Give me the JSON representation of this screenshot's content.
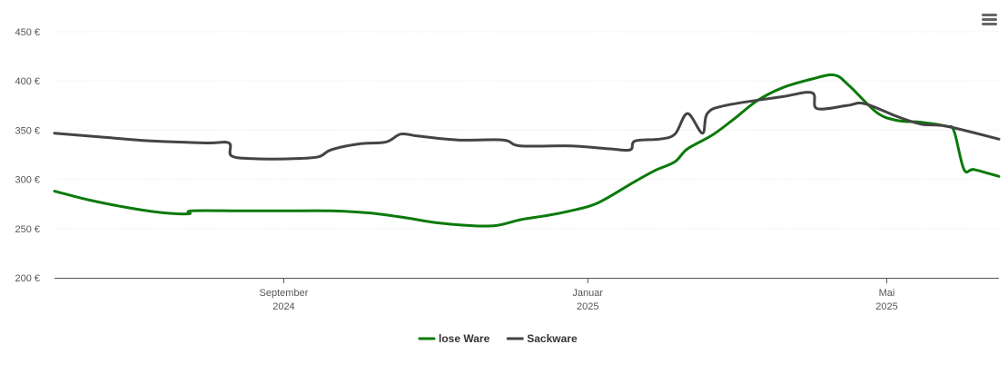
{
  "chart_data": {
    "type": "line",
    "y_ticks": [
      "200 €",
      "250 €",
      "300 €",
      "350 €",
      "400 €",
      "450 €"
    ],
    "y_values": [
      200,
      250,
      300,
      350,
      400,
      450
    ],
    "ylim": [
      200,
      450
    ],
    "xlim": [
      "2024-06-01",
      "2025-06-15"
    ],
    "x_ticks": [
      {
        "month": "September",
        "year": "2024",
        "date": "2024-09-01"
      },
      {
        "month": "Januar",
        "year": "2025",
        "date": "2025-01-01"
      },
      {
        "month": "Mai",
        "year": "2025",
        "date": "2025-05-01"
      }
    ],
    "grid": true,
    "legend_position": "bottom-center",
    "series": [
      {
        "name": "lose Ware",
        "color": "#0a7a0a",
        "points": [
          [
            "2024-06-01",
            288
          ],
          [
            "2024-06-15",
            279
          ],
          [
            "2024-07-01",
            271
          ],
          [
            "2024-07-15",
            266
          ],
          [
            "2024-07-25",
            265
          ],
          [
            "2024-07-26",
            268
          ],
          [
            "2024-08-15",
            268
          ],
          [
            "2024-09-01",
            268
          ],
          [
            "2024-09-20",
            268
          ],
          [
            "2024-10-05",
            266
          ],
          [
            "2024-10-20",
            261
          ],
          [
            "2024-11-01",
            256
          ],
          [
            "2024-11-15",
            253
          ],
          [
            "2024-11-25",
            253
          ],
          [
            "2024-12-05",
            259
          ],
          [
            "2024-12-15",
            263
          ],
          [
            "2024-12-25",
            268
          ],
          [
            "2025-01-05",
            276
          ],
          [
            "2025-01-20",
            298
          ],
          [
            "2025-01-28",
            309
          ],
          [
            "2025-02-05",
            318
          ],
          [
            "2025-02-10",
            331
          ],
          [
            "2025-02-20",
            345
          ],
          [
            "2025-03-01",
            362
          ],
          [
            "2025-03-10",
            380
          ],
          [
            "2025-03-20",
            393
          ],
          [
            "2025-04-01",
            402
          ],
          [
            "2025-04-10",
            406
          ],
          [
            "2025-04-16",
            395
          ],
          [
            "2025-04-27",
            368
          ],
          [
            "2025-05-05",
            360
          ],
          [
            "2025-05-15",
            358
          ],
          [
            "2025-05-25",
            354
          ],
          [
            "2025-05-28",
            349
          ],
          [
            "2025-06-01",
            310
          ],
          [
            "2025-06-05",
            310
          ],
          [
            "2025-06-15",
            303
          ]
        ]
      },
      {
        "name": "Sackware",
        "color": "#444444",
        "points": [
          [
            "2024-06-01",
            347
          ],
          [
            "2024-06-20",
            343
          ],
          [
            "2024-07-10",
            339
          ],
          [
            "2024-08-01",
            337
          ],
          [
            "2024-08-10",
            337
          ],
          [
            "2024-08-11",
            324
          ],
          [
            "2024-08-20",
            321
          ],
          [
            "2024-09-05",
            321
          ],
          [
            "2024-09-15",
            323
          ],
          [
            "2024-09-20",
            330
          ],
          [
            "2024-10-01",
            336
          ],
          [
            "2024-10-12",
            338
          ],
          [
            "2024-10-18",
            346
          ],
          [
            "2024-10-25",
            344
          ],
          [
            "2024-11-10",
            340
          ],
          [
            "2024-11-28",
            340
          ],
          [
            "2024-12-05",
            334
          ],
          [
            "2024-12-25",
            334
          ],
          [
            "2025-01-10",
            331
          ],
          [
            "2025-01-18",
            330
          ],
          [
            "2025-01-20",
            339
          ],
          [
            "2025-01-30",
            341
          ],
          [
            "2025-02-05",
            346
          ],
          [
            "2025-02-10",
            367
          ],
          [
            "2025-02-16",
            347
          ],
          [
            "2025-02-18",
            367
          ],
          [
            "2025-02-25",
            375
          ],
          [
            "2025-03-20",
            384
          ],
          [
            "2025-04-01",
            388
          ],
          [
            "2025-04-03",
            372
          ],
          [
            "2025-04-15",
            375
          ],
          [
            "2025-04-22",
            377
          ],
          [
            "2025-05-05",
            364
          ],
          [
            "2025-05-15",
            356
          ],
          [
            "2025-05-25",
            354
          ],
          [
            "2025-06-15",
            341
          ]
        ]
      }
    ]
  },
  "icons": {
    "menu": "hamburger-menu-icon"
  }
}
